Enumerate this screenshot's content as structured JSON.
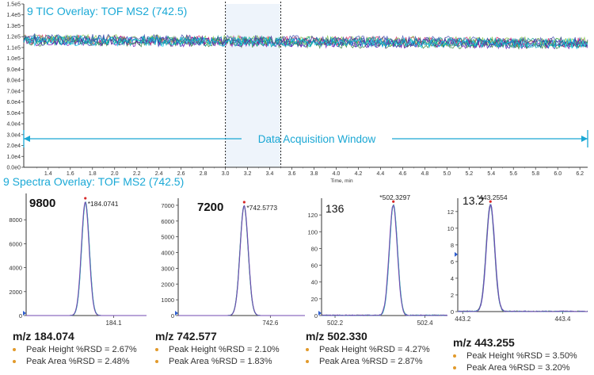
{
  "tic": {
    "title": "9 TIC Overlay: TOF MS2 (742.5)",
    "xlabel": "Time, min",
    "annotation": "Data Acquisition Window",
    "colors": [
      "#1a1aa6",
      "#d81b60",
      "#2e7d32",
      "#00a0b0",
      "#7cc040",
      "#6a0dad",
      "#009688",
      "#3949ab",
      "#00c7e6"
    ]
  },
  "spectra": {
    "title": "9 Spectra Overlay: TOF MS2 (742.5)",
    "colors": [
      "#2e3fa8",
      "#3fa040",
      "#2ea9c2",
      "#7a3fb0"
    ]
  },
  "chart_data": [
    {
      "type": "line",
      "title": "9 TIC Overlay: TOF MS2 (742.5)",
      "xlabel": "Time, min",
      "ylabel": "",
      "xlim": [
        1.18,
        6.27
      ],
      "ylim": [
        0,
        150000
      ],
      "x_ticks": [
        "1.4",
        "1.6",
        "1.8",
        "2.0",
        "2.2",
        "2.4",
        "2.6",
        "2.8",
        "3.0",
        "3.2",
        "3.4",
        "3.6",
        "3.8",
        "4.0",
        "4.2",
        "4.4",
        "4.6",
        "4.8",
        "5.0",
        "5.2",
        "5.4",
        "5.6",
        "5.8",
        "6.0",
        "6.2"
      ],
      "y_ticks": [
        "0.0e0",
        "1.0e4",
        "2.0e4",
        "3.0e4",
        "4.0e4",
        "5.0e4",
        "6.0e4",
        "7.0e4",
        "8.0e4",
        "9.0e4",
        "1.0e5",
        "1.1e5",
        "1.2e5",
        "1.3e5",
        "1.4e5",
        "1.5e5"
      ],
      "series_count": 9,
      "approx_level": 117000,
      "highlight_window": [
        3.0,
        3.5
      ],
      "acquisition_window": [
        1.18,
        6.27
      ],
      "annotation": "Data Acquisition Window"
    },
    {
      "type": "line",
      "peak_label": "*184.0741",
      "ymax_label": "9800",
      "peak_x": 184.0741,
      "peak_y": 9800,
      "xlim": [
        184.02,
        184.13
      ],
      "ylim": [
        0,
        10200
      ],
      "x_ticks": [
        "184.1"
      ],
      "y_ticks": [
        "0",
        "2000",
        "4000",
        "6000",
        "8000"
      ],
      "mz": "m/z 184.074",
      "height_rsd": "Peak Height %RSD = 2.67%",
      "area_rsd": "Peak Area %RSD = 2.48%"
    },
    {
      "type": "line",
      "peak_label": "*742.5773",
      "ymax_label": "7200",
      "peak_x": 742.5773,
      "peak_y": 7200,
      "xlim": [
        742.52,
        742.63
      ],
      "ylim": [
        0,
        7450
      ],
      "x_ticks": [
        "742.6"
      ],
      "y_ticks": [
        "0",
        "1000",
        "2000",
        "3000",
        "4000",
        "5000",
        "6000",
        "7000"
      ],
      "mz": "m/z 742.577",
      "height_rsd": "Peak Height %RSD = 2.10%",
      "area_rsd": "Peak Area %RSD = 1.83%"
    },
    {
      "type": "line",
      "peak_label": "*502.3297",
      "ymax_label": "136",
      "peak_x": 502.3297,
      "peak_y": 136,
      "xlim": [
        502.17,
        502.45
      ],
      "ylim": [
        0,
        140
      ],
      "x_ticks": [
        "502.2",
        "502.4"
      ],
      "y_ticks": [
        "0",
        "20",
        "40",
        "60",
        "80",
        "100",
        "120"
      ],
      "mz": "m/z 502.330",
      "height_rsd": "Peak Height %RSD = 4.27%",
      "area_rsd": "Peak Area %RSD = 2.87%"
    },
    {
      "type": "line",
      "peak_label": "*443.2554",
      "ymax_label": "13.2",
      "peak_x": 443.2554,
      "peak_y": 13.2,
      "xlim": [
        443.19,
        443.45
      ],
      "ylim": [
        0,
        13.6
      ],
      "x_ticks": [
        "443.2",
        "443.4"
      ],
      "y_ticks": [
        "0",
        "2",
        "4",
        "6",
        "8",
        "10",
        "12"
      ],
      "mz": "m/z 443.255",
      "height_rsd": "Peak Height %RSD = 3.50%",
      "area_rsd": "Peak Area %RSD = 3.20%"
    }
  ]
}
